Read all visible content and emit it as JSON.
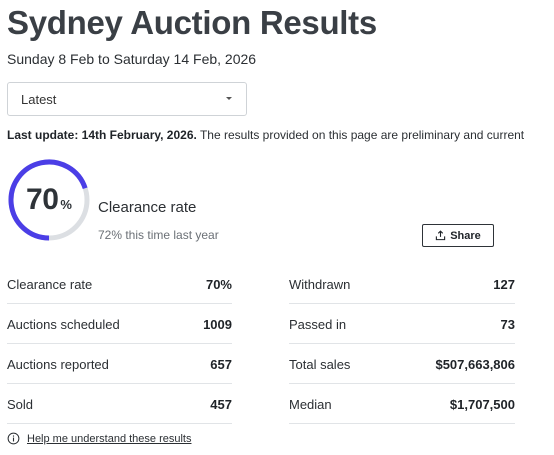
{
  "page": {
    "title": "Sydney Auction Results",
    "subtitle": "Sunday 8 Feb to Saturday 14 Feb, 2026"
  },
  "filter": {
    "selected": "Latest",
    "icon": "chevron-down-icon"
  },
  "update": {
    "label": "Last update: 14th February, 2026.",
    "text": " The results provided on this page are preliminary and current"
  },
  "clearance": {
    "value": "70",
    "percent_sign": "%",
    "fraction": 0.7,
    "label": "Clearance rate",
    "last_year": "72% this time last year",
    "accent_color": "#4b3ee6",
    "track_color": "#dcdfe3"
  },
  "share": {
    "label": "Share",
    "icon": "share-icon"
  },
  "stats": {
    "left": [
      {
        "label": "Clearance rate",
        "value": "70%"
      },
      {
        "label": "Auctions scheduled",
        "value": "1009"
      },
      {
        "label": "Auctions reported",
        "value": "657"
      },
      {
        "label": "Sold",
        "value": "457"
      }
    ],
    "right": [
      {
        "label": "Withdrawn",
        "value": "127"
      },
      {
        "label": "Passed in",
        "value": "73"
      },
      {
        "label": "Total sales",
        "value": "$507,663,806"
      },
      {
        "label": "Median",
        "value": "$1,707,500"
      }
    ]
  },
  "help": {
    "label": "Help me understand these results",
    "icon": "info-icon"
  }
}
